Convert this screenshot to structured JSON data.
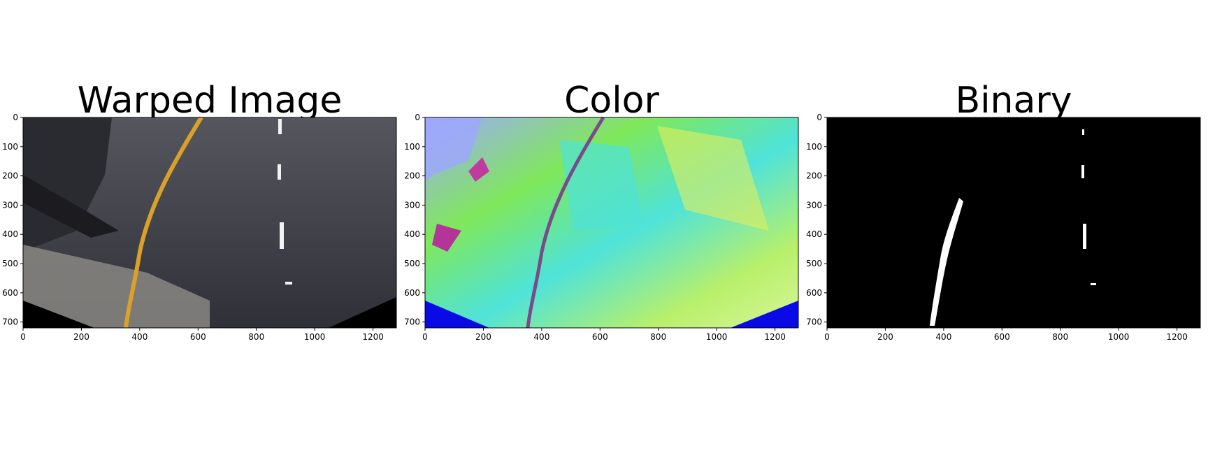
{
  "figure": {
    "panels": [
      {
        "title": "Warped Image",
        "x_ticks": [
          "0",
          "200",
          "400",
          "600",
          "800",
          "1000",
          "1200"
        ],
        "y_ticks": [
          "0",
          "100",
          "200",
          "300",
          "400",
          "500",
          "600",
          "700"
        ],
        "image_description_icon": "road-warped-image"
      },
      {
        "title": "Color",
        "x_ticks": [
          "0",
          "200",
          "400",
          "600",
          "800",
          "1000",
          "1200"
        ],
        "y_ticks": [
          "0",
          "100",
          "200",
          "300",
          "400",
          "500",
          "600",
          "700"
        ],
        "image_description_icon": "color-threshold-image"
      },
      {
        "title": "Binary",
        "x_ticks": [
          "0",
          "200",
          "400",
          "600",
          "800",
          "1000",
          "1200"
        ],
        "y_ticks": [
          "0",
          "100",
          "200",
          "300",
          "400",
          "500",
          "600",
          "700"
        ],
        "image_description_icon": "binary-threshold-image"
      }
    ],
    "x_range": [
      0,
      1280
    ],
    "y_range": [
      0,
      720
    ],
    "colors": {
      "road_dark": "#3f4047",
      "lane_yellow": "#d9a12a",
      "lane_white": "#f2f2f2",
      "color_green": "#7fe85a",
      "color_cyan": "#4fe3d9",
      "color_blue_fill": "#0a0ae6",
      "binary_bg": "#000000",
      "binary_fg": "#ffffff"
    }
  }
}
